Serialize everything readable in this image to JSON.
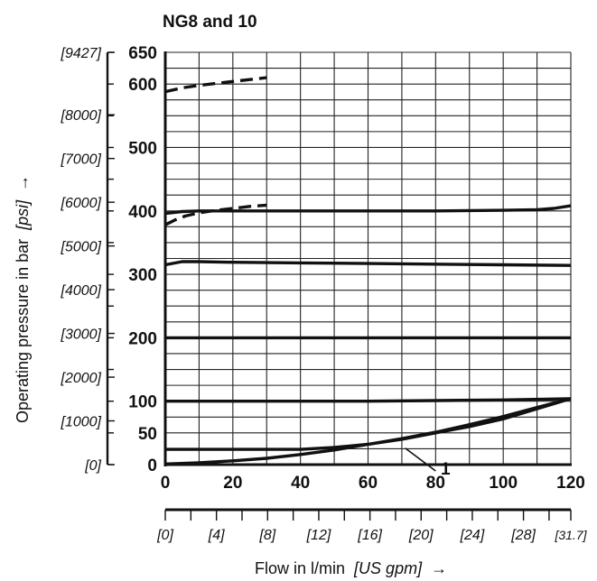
{
  "chart_data": {
    "type": "line",
    "title": "NG8 and 10",
    "ylabel": {
      "main": "Operating pressure in bar",
      "unit": "[psi]",
      "arrow": "→"
    },
    "xlabel": {
      "main": "Flow in l/min",
      "unit": "[US gpm]",
      "arrow": "→"
    },
    "xlim": [
      0,
      120
    ],
    "ylim": [
      0,
      650
    ],
    "grid": true,
    "x_ticks_labeled": [
      0,
      20,
      40,
      60,
      80,
      100,
      120
    ],
    "y_ticks_labeled": [
      0,
      50,
      100,
      200,
      300,
      400,
      500,
      600,
      650
    ],
    "gpm_labels": [
      "[0]",
      "[4]",
      "[8]",
      "[12]",
      "[16]",
      "[20]",
      "[24]",
      "[28]",
      "[31.7]"
    ],
    "psi_labels": [
      "[0]",
      "[1000]",
      "[2000]",
      "[3000]",
      "[4000]",
      "[5000]",
      "[6000]",
      "[7000]",
      "[8000]",
      "[9427]"
    ],
    "psi_values": [
      0,
      1000,
      2000,
      3000,
      4000,
      5000,
      6000,
      7000,
      8000,
      9427
    ],
    "annotation": "1",
    "series": [
      {
        "dashed": true,
        "x": [
          0,
          5,
          10,
          15,
          20,
          25,
          30
        ],
        "y": [
          588,
          594,
          598,
          601,
          604,
          607,
          610
        ]
      },
      {
        "dashed": true,
        "x": [
          0,
          3,
          6,
          10,
          15,
          20,
          25,
          30
        ],
        "y": [
          378,
          386,
          392,
          397,
          401,
          404,
          407,
          409
        ]
      },
      {
        "dashed": false,
        "x": [
          0,
          5,
          10,
          20,
          40,
          60,
          80,
          100,
          110,
          115,
          120
        ],
        "y": [
          396,
          399,
          400,
          400,
          400,
          400,
          400,
          401,
          402,
          404,
          408
        ]
      },
      {
        "dashed": false,
        "x": [
          0,
          5,
          10,
          20,
          40,
          60,
          80,
          100,
          120
        ],
        "y": [
          315,
          320,
          320,
          319,
          318,
          317,
          316,
          315,
          314
        ]
      },
      {
        "dashed": false,
        "x": [
          0,
          120
        ],
        "y": [
          200,
          200
        ]
      },
      {
        "dashed": false,
        "x": [
          0,
          20,
          40,
          60,
          80,
          100,
          120
        ],
        "y": [
          100,
          100,
          100,
          100,
          101,
          102,
          104
        ]
      },
      {
        "dashed": false,
        "x": [
          0,
          20,
          40,
          50,
          60,
          70,
          80,
          90,
          100,
          110,
          120
        ],
        "y": [
          24,
          24,
          24,
          27,
          32,
          40,
          50,
          60,
          72,
          88,
          104
        ]
      },
      {
        "dashed": false,
        "x": [
          0,
          10,
          20,
          30,
          40,
          50,
          60,
          70,
          80,
          90,
          100,
          110,
          120
        ],
        "y": [
          1,
          3,
          6,
          10,
          16,
          23,
          32,
          41,
          51,
          63,
          76,
          90,
          104
        ]
      }
    ]
  }
}
